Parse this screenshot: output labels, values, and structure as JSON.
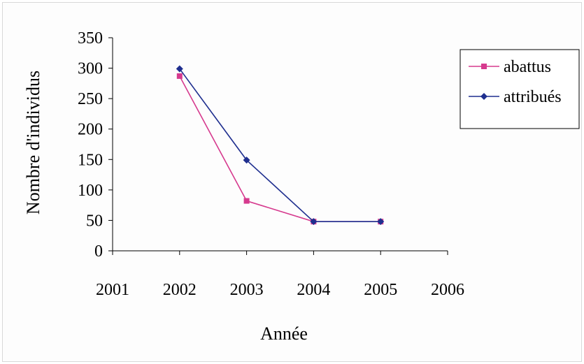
{
  "chart_data": {
    "type": "line",
    "title": "",
    "xlabel": "Année",
    "ylabel": "Nombre d'individus",
    "xlim": [
      2001,
      2006
    ],
    "ylim": [
      0,
      350
    ],
    "x_ticks": [
      "2001",
      "2002",
      "2003",
      "2004",
      "2005",
      "2006"
    ],
    "y_ticks": [
      "0",
      "50",
      "100",
      "150",
      "200",
      "250",
      "300",
      "350"
    ],
    "grid": false,
    "legend_position": "right",
    "series": [
      {
        "name": "abattus",
        "color": "#d63a8e",
        "marker": "square",
        "x": [
          2002,
          2003,
          2004,
          2005
        ],
        "values": [
          287,
          82,
          48,
          48
        ]
      },
      {
        "name": "attribués",
        "color": "#1f2f8f",
        "marker": "diamond",
        "x": [
          2002,
          2003,
          2004,
          2005
        ],
        "values": [
          299,
          149,
          48,
          48
        ]
      }
    ]
  }
}
